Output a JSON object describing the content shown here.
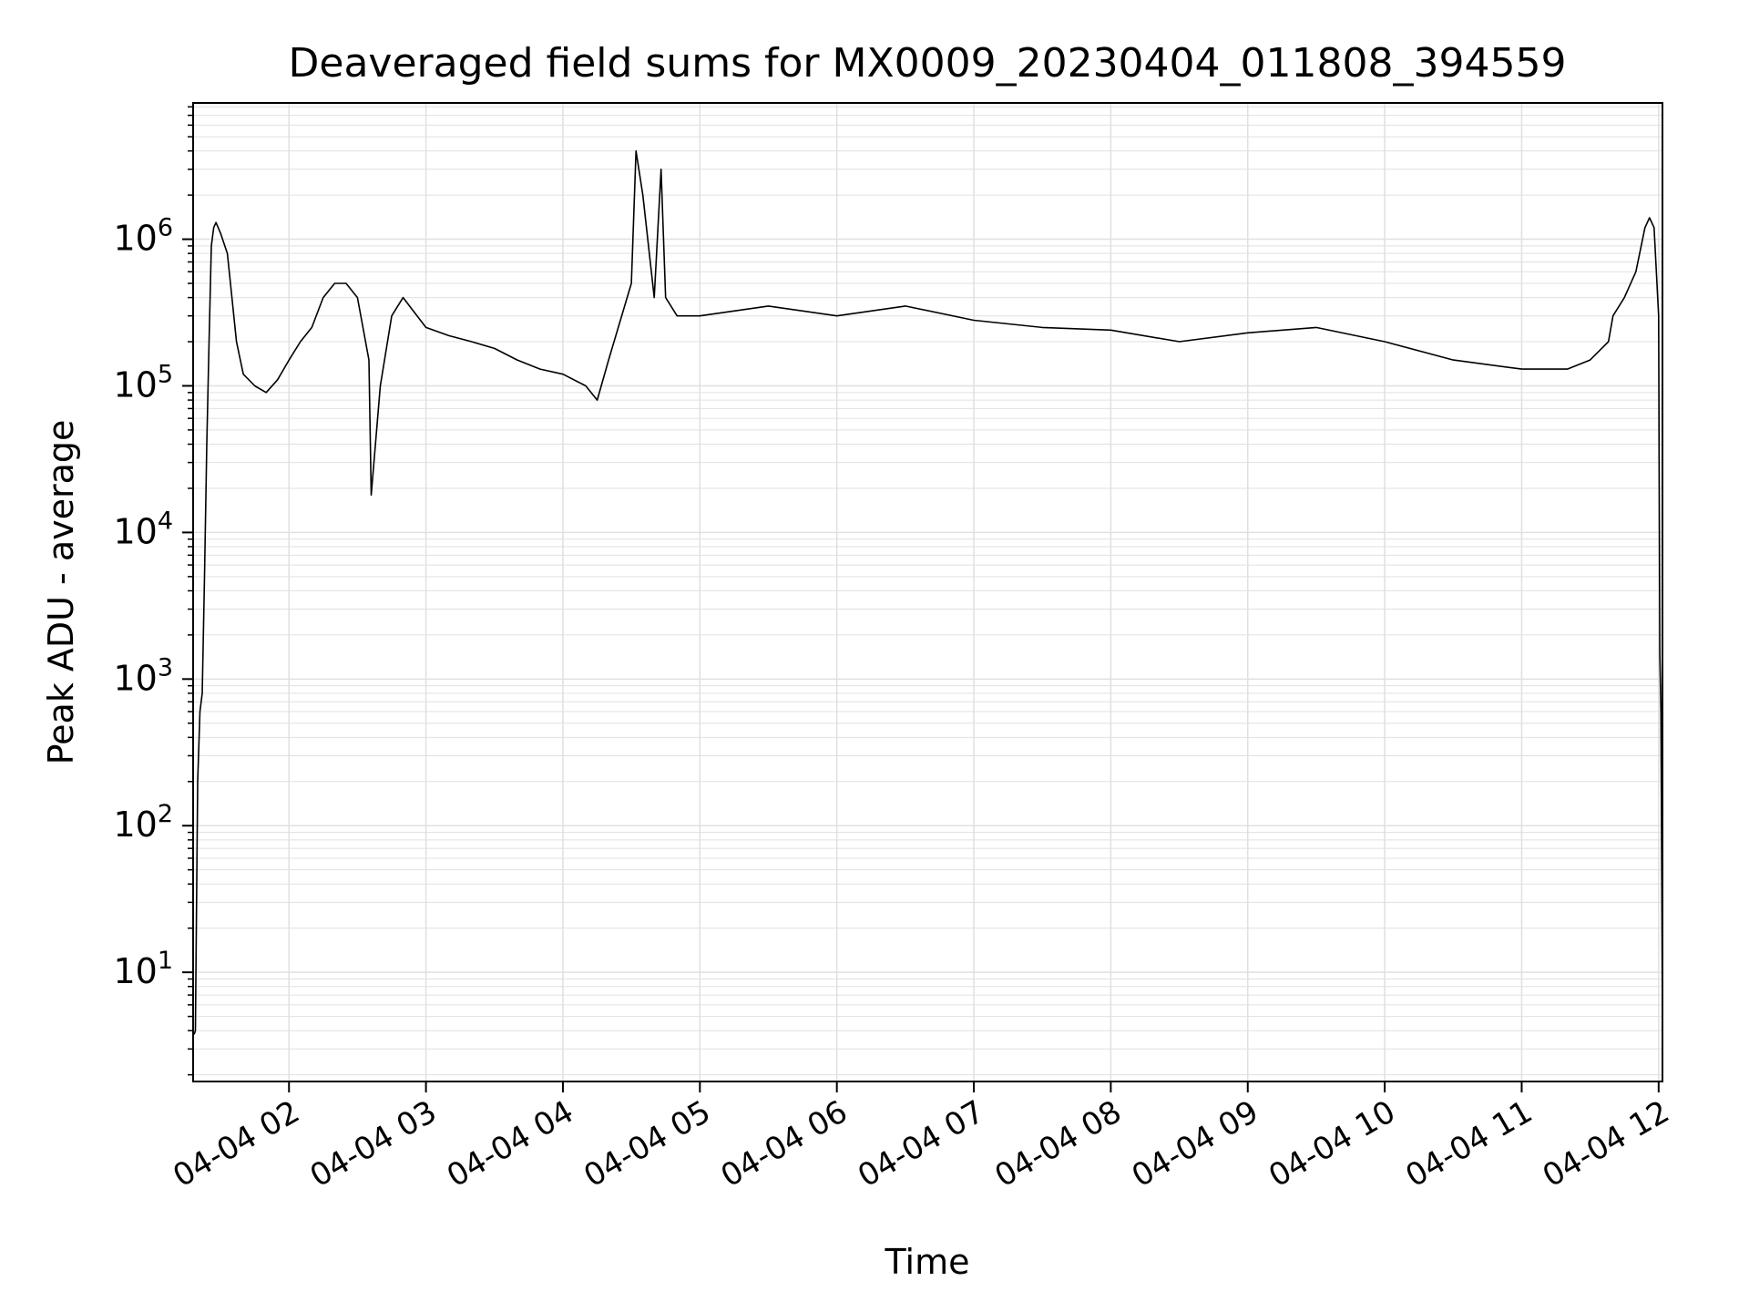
{
  "chart_data": {
    "type": "line",
    "title": "Deaveraged field sums for MX0009_20230404_011808_394559",
    "xlabel": "Time",
    "ylabel": "Peak ADU - average",
    "yscale": "log",
    "ylim": [
      1.8,
      8500000
    ],
    "xlim": [
      "2023-04-04 01:18:00",
      "2023-04-04 12:01:40"
    ],
    "grid": true,
    "line_color": "#000000",
    "grid_color": "#e0e0e0",
    "x_ticks": [
      "2023-04-04 02:00",
      "2023-04-04 03:00",
      "2023-04-04 04:00",
      "2023-04-04 05:00",
      "2023-04-04 06:00",
      "2023-04-04 07:00",
      "2023-04-04 08:00",
      "2023-04-04 09:00",
      "2023-04-04 10:00",
      "2023-04-04 11:00",
      "2023-04-04 12:00"
    ],
    "x_tick_labels": [
      "04-04 02",
      "04-04 03",
      "04-04 04",
      "04-04 05",
      "04-04 06",
      "04-04 07",
      "04-04 08",
      "04-04 09",
      "04-04 10",
      "04-04 11",
      "04-04 12"
    ],
    "y_ticks": [
      10,
      100,
      1000,
      10000,
      100000,
      1000000
    ],
    "y_tick_labels": [
      {
        "base": "10",
        "exp": "1"
      },
      {
        "base": "10",
        "exp": "2"
      },
      {
        "base": "10",
        "exp": "3"
      },
      {
        "base": "10",
        "exp": "4"
      },
      {
        "base": "10",
        "exp": "5"
      },
      {
        "base": "10",
        "exp": "6"
      }
    ],
    "series": [
      {
        "x": [
          "2023-04-04 01:18:00",
          "2023-04-04 01:18:30",
          "2023-04-04 01:19:00",
          "2023-04-04 01:20:00",
          "2023-04-04 01:21:00",
          "2023-04-04 01:22:00",
          "2023-04-04 01:23:00",
          "2023-04-04 01:24:00",
          "2023-04-04 01:25:00",
          "2023-04-04 01:26:00",
          "2023-04-04 01:27:00",
          "2023-04-04 01:28:00",
          "2023-04-04 01:30:00",
          "2023-04-04 01:33:00",
          "2023-04-04 01:35:00",
          "2023-04-04 01:37:00",
          "2023-04-04 01:40:00",
          "2023-04-04 01:45:00",
          "2023-04-04 01:50:00",
          "2023-04-04 01:55:00",
          "2023-04-04 02:00:00",
          "2023-04-04 02:05:00",
          "2023-04-04 02:10:00",
          "2023-04-04 02:15:00",
          "2023-04-04 02:20:00",
          "2023-04-04 02:25:00",
          "2023-04-04 02:30:00",
          "2023-04-04 02:35:00",
          "2023-04-04 02:36:00",
          "2023-04-04 02:40:00",
          "2023-04-04 02:45:00",
          "2023-04-04 02:50:00",
          "2023-04-04 03:00:00",
          "2023-04-04 03:10:00",
          "2023-04-04 03:20:00",
          "2023-04-04 03:30:00",
          "2023-04-04 03:40:00",
          "2023-04-04 03:50:00",
          "2023-04-04 04:00:00",
          "2023-04-04 04:10:00",
          "2023-04-04 04:15:00",
          "2023-04-04 04:20:00",
          "2023-04-04 04:30:00",
          "2023-04-04 04:32:00",
          "2023-04-04 04:35:00",
          "2023-04-04 04:40:00",
          "2023-04-04 04:43:00",
          "2023-04-04 04:45:00",
          "2023-04-04 04:50:00",
          "2023-04-04 05:00:00",
          "2023-04-04 05:30:00",
          "2023-04-04 06:00:00",
          "2023-04-04 06:30:00",
          "2023-04-04 07:00:00",
          "2023-04-04 07:30:00",
          "2023-04-04 08:00:00",
          "2023-04-04 08:30:00",
          "2023-04-04 09:00:00",
          "2023-04-04 09:30:00",
          "2023-04-04 10:00:00",
          "2023-04-04 10:30:00",
          "2023-04-04 11:00:00",
          "2023-04-04 11:20:00",
          "2023-04-04 11:30:00",
          "2023-04-04 11:38:00",
          "2023-04-04 11:40:00",
          "2023-04-04 11:45:00",
          "2023-04-04 11:50:00",
          "2023-04-04 11:54:00",
          "2023-04-04 11:56:00",
          "2023-04-04 11:58:00",
          "2023-04-04 12:00:00",
          "2023-04-04 12:00:30",
          "2023-04-04 12:01:00",
          "2023-04-04 12:01:20",
          "2023-04-04 12:01:40"
        ],
        "y": [
          3.8,
          3.8,
          4,
          200,
          600,
          800,
          5000,
          40000,
          200000,
          900000,
          1200000,
          1300000,
          1100000,
          800000,
          400000,
          200000,
          120000,
          100000,
          90000,
          110000,
          150000,
          200000,
          250000,
          400000,
          500000,
          500000,
          400000,
          150000,
          18000,
          100000,
          300000,
          400000,
          250000,
          220000,
          200000,
          180000,
          150000,
          130000,
          120000,
          100000,
          80000,
          150000,
          500000,
          4000000,
          2000000,
          400000,
          3000000,
          400000,
          300000,
          300000,
          350000,
          300000,
          350000,
          280000,
          250000,
          240000,
          200000,
          230000,
          250000,
          200000,
          150000,
          130000,
          130000,
          150000,
          200000,
          300000,
          400000,
          600000,
          1200000,
          1400000,
          1200000,
          300000,
          1500,
          600,
          50,
          3.8
        ]
      }
    ]
  }
}
